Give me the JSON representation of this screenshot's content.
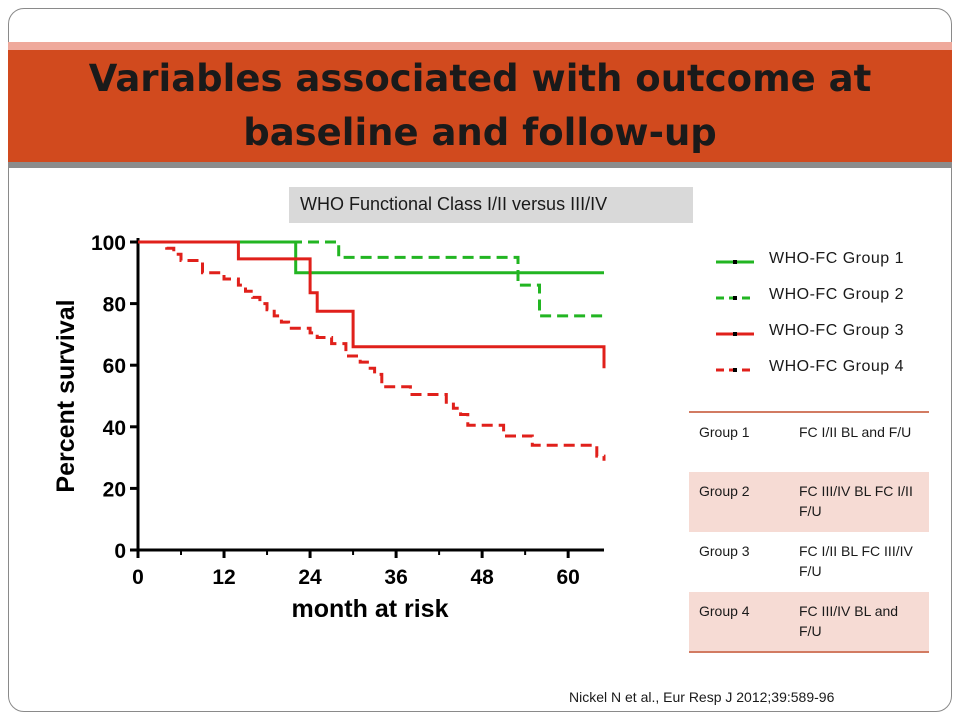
{
  "title": "Variables associated with outcome at baseline and follow-up",
  "subtitle": "WHO Functional Class I/II versus III/IV",
  "citation": "Nickel N et al., Eur Resp J 2012;39:589-96",
  "colors": {
    "title_band": "#d14a1e",
    "group_1_2": "#22b522",
    "group_3_4": "#e0201b",
    "table_shade": "#f6dbd4"
  },
  "chart_data": {
    "type": "line",
    "subtype": "kaplan-meier step",
    "xlabel": "month at risk",
    "ylabel": "Percent survival",
    "xlim": [
      0,
      65
    ],
    "ylim": [
      0,
      100
    ],
    "x_ticks": [
      0,
      12,
      24,
      36,
      48,
      60
    ],
    "y_ticks": [
      0,
      20,
      40,
      60,
      80,
      100
    ],
    "legend_position": "right",
    "series": [
      {
        "name": "WHO-FC Group 1",
        "color": "#22b522",
        "dash": "solid",
        "points": [
          [
            0,
            100
          ],
          [
            22,
            100
          ],
          [
            22,
            90
          ],
          [
            65,
            90
          ]
        ]
      },
      {
        "name": "WHO-FC Group 2",
        "color": "#22b522",
        "dash": "dashed",
        "points": [
          [
            0,
            100
          ],
          [
            28,
            100
          ],
          [
            28,
            95
          ],
          [
            53,
            95
          ],
          [
            53,
            86
          ],
          [
            56,
            86
          ],
          [
            56,
            76
          ],
          [
            65,
            76
          ]
        ]
      },
      {
        "name": "WHO-FC Group 3",
        "color": "#e0201b",
        "dash": "solid",
        "points": [
          [
            0,
            100
          ],
          [
            14,
            100
          ],
          [
            14,
            94.5
          ],
          [
            24,
            94.5
          ],
          [
            24,
            83.5
          ],
          [
            25,
            83.5
          ],
          [
            25,
            77.5
          ],
          [
            30,
            77.5
          ],
          [
            30,
            66
          ],
          [
            65,
            66
          ],
          [
            65,
            59
          ]
        ]
      },
      {
        "name": "WHO-FC Group 4",
        "color": "#e0201b",
        "dash": "dashed",
        "points": [
          [
            0,
            100
          ],
          [
            4,
            100
          ],
          [
            4,
            98
          ],
          [
            5,
            98
          ],
          [
            5,
            96
          ],
          [
            6,
            96
          ],
          [
            6,
            94
          ],
          [
            9,
            94
          ],
          [
            9,
            90
          ],
          [
            12,
            90
          ],
          [
            12,
            88
          ],
          [
            14,
            88
          ],
          [
            14,
            86
          ],
          [
            15,
            86
          ],
          [
            15,
            84
          ],
          [
            16,
            84
          ],
          [
            16,
            82
          ],
          [
            17,
            82
          ],
          [
            17,
            80
          ],
          [
            18,
            80
          ],
          [
            18,
            78
          ],
          [
            19,
            78
          ],
          [
            19,
            76
          ],
          [
            20,
            76
          ],
          [
            20,
            74
          ],
          [
            21,
            74
          ],
          [
            21,
            72
          ],
          [
            24,
            72
          ],
          [
            24,
            70.5
          ],
          [
            25,
            70.5
          ],
          [
            25,
            69
          ],
          [
            27,
            69
          ],
          [
            27,
            67
          ],
          [
            29,
            67
          ],
          [
            29,
            63
          ],
          [
            31,
            63
          ],
          [
            31,
            61
          ],
          [
            32,
            61
          ],
          [
            32,
            59
          ],
          [
            33,
            59
          ],
          [
            33,
            57
          ],
          [
            34,
            57
          ],
          [
            34,
            53
          ],
          [
            38,
            53
          ],
          [
            38,
            50.5
          ],
          [
            43,
            50.5
          ],
          [
            43,
            48
          ],
          [
            44,
            48
          ],
          [
            44,
            46
          ],
          [
            45,
            46
          ],
          [
            45,
            44
          ],
          [
            46,
            44
          ],
          [
            46,
            40.5
          ],
          [
            51,
            40.5
          ],
          [
            51,
            37
          ],
          [
            55,
            37
          ],
          [
            55,
            34
          ],
          [
            64,
            34
          ],
          [
            64,
            30.5
          ],
          [
            65,
            30.5
          ],
          [
            65,
            29
          ]
        ]
      }
    ]
  },
  "groups_table": [
    {
      "group": "Group 1",
      "description": "FC I/II BL and F/U"
    },
    {
      "group": "Group 2",
      "description": "FC III/IV BL FC I/II F/U"
    },
    {
      "group": "Group 3",
      "description": "FC I/II BL FC III/IV F/U"
    },
    {
      "group": "Group 4",
      "description": "FC III/IV BL and F/U"
    }
  ]
}
